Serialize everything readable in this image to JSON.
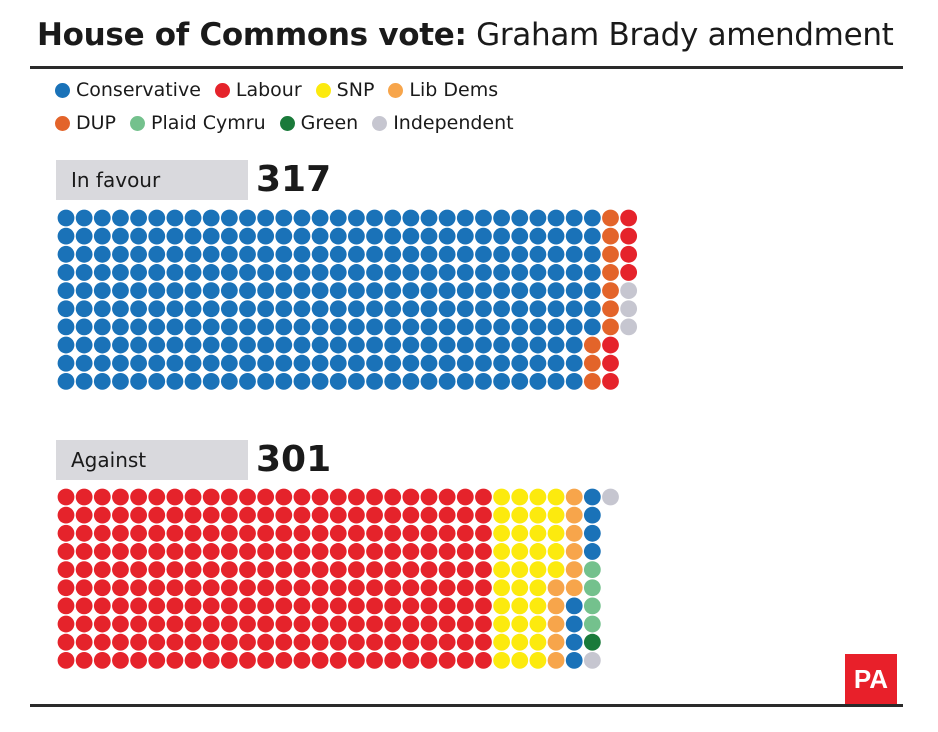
{
  "title_bold": "House of Commons vote:",
  "title_rest": " Graham Brady amendment",
  "logo_text": "PA",
  "legend": [
    {
      "label": "Conservative",
      "color": "#1a72b8",
      "icon": "circle"
    },
    {
      "label": "Labour",
      "color": "#e5232b",
      "icon": "circle"
    },
    {
      "label": "SNP",
      "color": "#fcea0e",
      "icon": "circle"
    },
    {
      "label": "Lib Dems",
      "color": "#f7a54b",
      "icon": "circle"
    },
    {
      "label": "DUP",
      "color": "#e3642a",
      "icon": "circle"
    },
    {
      "label": "Plaid Cymru",
      "color": "#74c18d",
      "icon": "circle"
    },
    {
      "label": "Green",
      "color": "#1a7a3a",
      "icon": "circle"
    },
    {
      "label": "Independent",
      "color": "#c6c6d0",
      "icon": "circle"
    }
  ],
  "chart_data": {
    "type": "waffle",
    "title": "House of Commons vote: Graham Brady amendment",
    "groups": [
      {
        "label": "In favour",
        "total": 317,
        "breakdown": [
          {
            "party": "Conservative",
            "seats": 297
          },
          {
            "party": "DUP",
            "seats": 10
          },
          {
            "party": "Labour",
            "seats": 7
          },
          {
            "party": "Independent",
            "seats": 3
          }
        ]
      },
      {
        "label": "Against",
        "total": 301,
        "breakdown": [
          {
            "party": "Labour",
            "seats": 240
          },
          {
            "party": "SNP",
            "seats": 35
          },
          {
            "party": "Lib Dems",
            "seats": 11
          },
          {
            "party": "Conservative",
            "seats": 8
          },
          {
            "party": "Plaid Cymru",
            "seats": 4
          },
          {
            "party": "Green",
            "seats": 1
          },
          {
            "party": "Independent",
            "seats": 2
          }
        ]
      }
    ]
  }
}
